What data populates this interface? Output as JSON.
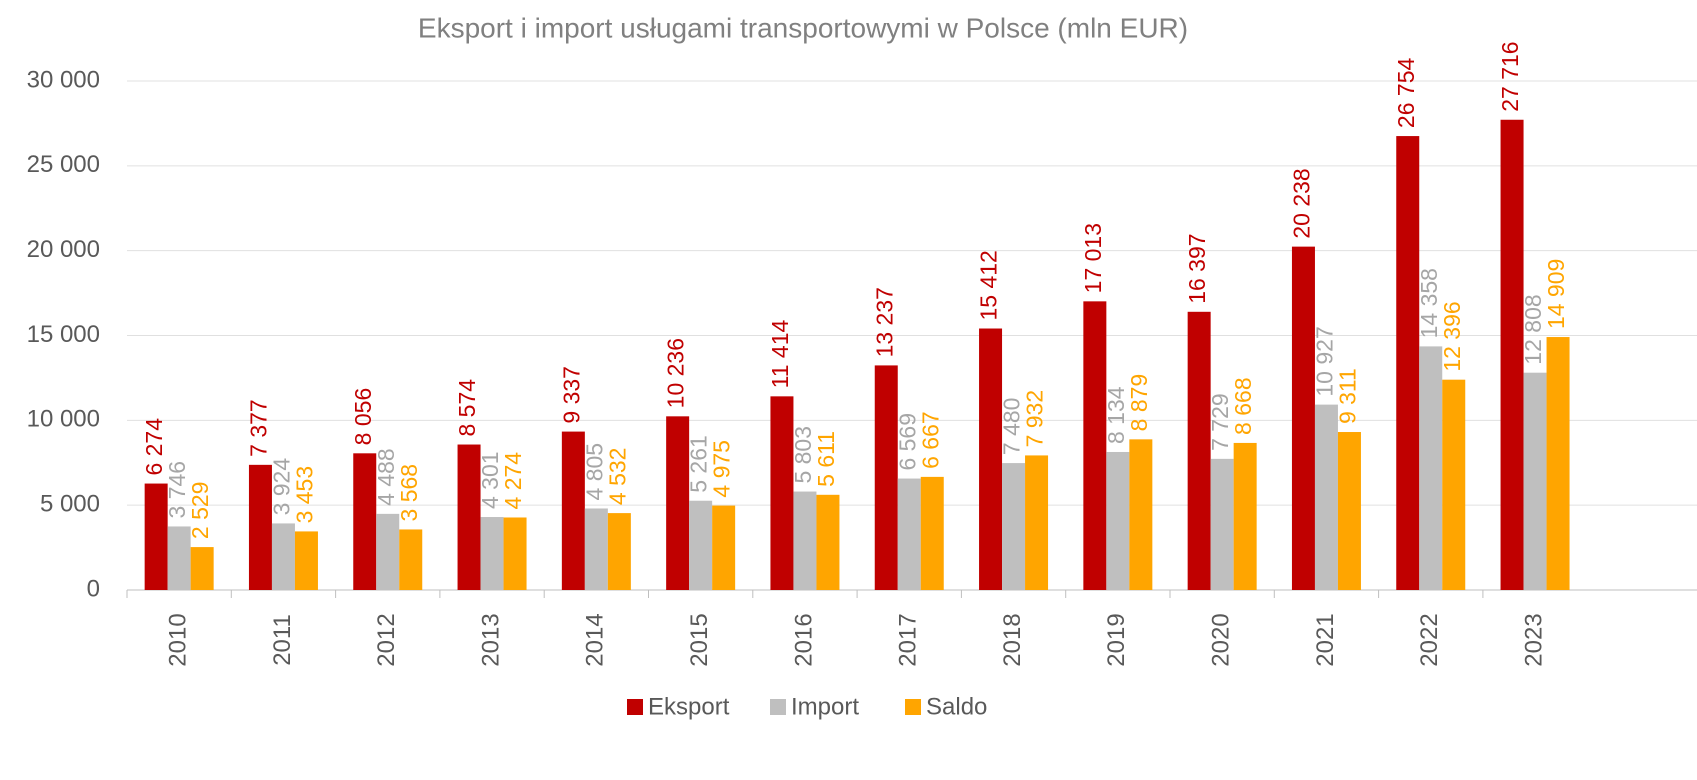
{
  "chart_data": {
    "type": "bar",
    "title": "Eksport i import usługami transportowymi w Polsce (mln EUR)",
    "categories": [
      "2010",
      "2011",
      "2012",
      "2013",
      "2014",
      "2015",
      "2016",
      "2017",
      "2018",
      "2019",
      "2020",
      "2021",
      "2022",
      "2023"
    ],
    "series": [
      {
        "name": "Eksport",
        "color": "#c00000",
        "values": [
          6274,
          7377,
          8056,
          8574,
          9337,
          10236,
          11414,
          13237,
          15412,
          17013,
          16397,
          20238,
          26754,
          27716
        ],
        "value_labels": [
          "6 274",
          "7 377",
          "8 056",
          "8 574",
          "9 337",
          "10 236",
          "11 414",
          "13 237",
          "15 412",
          "17 013",
          "16 397",
          "20 238",
          "26 754",
          "27 716"
        ]
      },
      {
        "name": "Import",
        "color": "#bfbfbf",
        "values": [
          3746,
          3924,
          4488,
          4301,
          4805,
          5261,
          5803,
          6569,
          7480,
          8134,
          7729,
          10927,
          14358,
          12808
        ],
        "value_labels": [
          "3 746",
          "3 924",
          "4 488",
          "4 301",
          "4 805",
          "5 261",
          "5 803",
          "6 569",
          "7 480",
          "8 134",
          "7 729",
          "10 927",
          "14 358",
          "12 808"
        ]
      },
      {
        "name": "Saldo",
        "color": "#ffa500",
        "values": [
          2529,
          3453,
          3568,
          4274,
          4532,
          4975,
          5611,
          6667,
          7932,
          8879,
          8668,
          9311,
          12396,
          14909
        ],
        "value_labels": [
          "2 529",
          "3 453",
          "3 568",
          "4 274",
          "4 532",
          "4 975",
          "5 611",
          "6 667",
          "7 932",
          "8 879",
          "8 668",
          "9 311",
          "12 396",
          "14 909"
        ]
      }
    ],
    "ylim": [
      0,
      30000
    ],
    "yticks": [
      0,
      {
        "value": 5000,
        "label": "5 000"
      },
      {
        "value": 10000,
        "label": "10 000"
      },
      {
        "value": 15000,
        "label": "15 000"
      },
      {
        "value": 20000,
        "label": "20 000"
      },
      {
        "value": 25000,
        "label": "25 000"
      },
      {
        "value": 30000,
        "label": "30 000"
      }
    ],
    "grid": true,
    "legend": "bottom"
  }
}
